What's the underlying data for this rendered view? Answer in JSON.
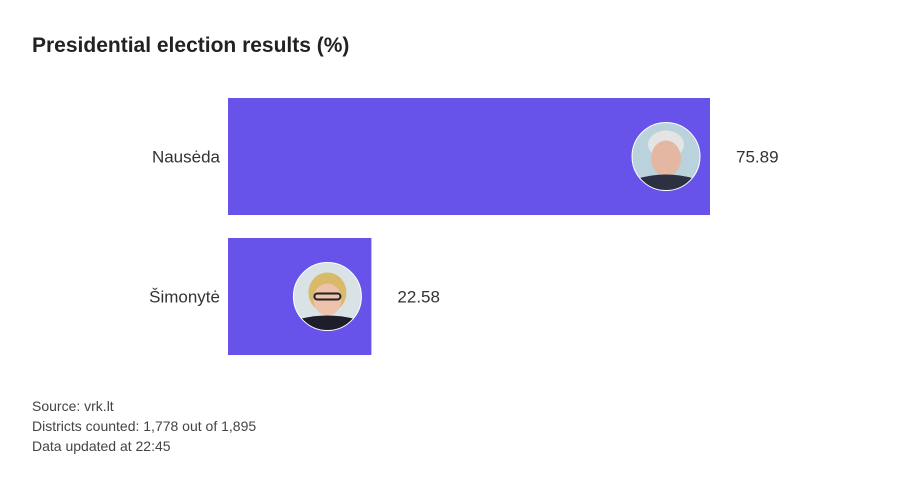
{
  "chart_data": {
    "type": "bar",
    "orientation": "horizontal",
    "title": "Presidential election results (%)",
    "categories": [
      "Nausėda",
      "Šimonytė"
    ],
    "values": [
      75.89,
      22.58
    ],
    "value_labels": [
      "75.89",
      "22.58"
    ],
    "bar_color": "#6753ea",
    "xlim": [
      0,
      100
    ],
    "grid": false,
    "bar_images": [
      "candidate-photo",
      "candidate-photo"
    ]
  },
  "footer": {
    "source": "Source: vrk.lt",
    "districts": "Districts counted: 1,778 out of 1,895",
    "updated": "Data updated at 22:45"
  }
}
